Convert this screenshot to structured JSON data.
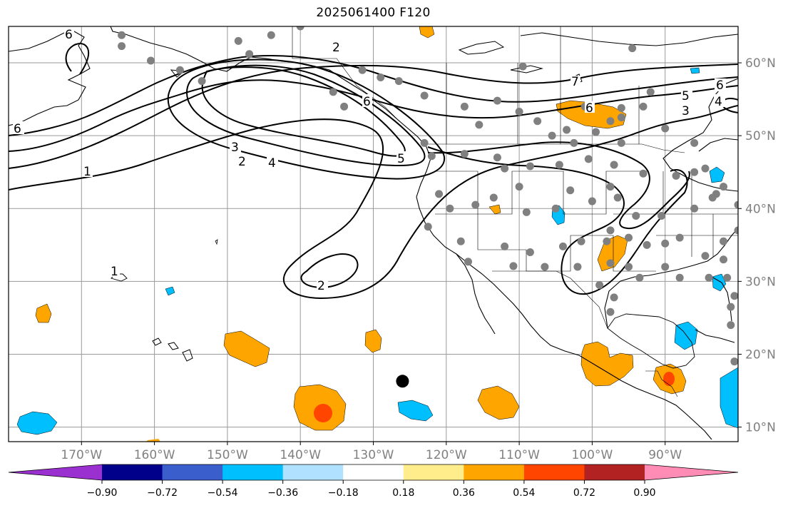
{
  "title": "2025061400 F120",
  "map": {
    "projection": "PlateCarree",
    "lon_range": [
      -180,
      -80
    ],
    "lat_range": [
      8,
      65
    ],
    "lon_ticks": [
      -170,
      -160,
      -150,
      -140,
      -130,
      -120,
      -110,
      -100,
      -90
    ],
    "lon_tick_labels": [
      "170°W",
      "160°W",
      "150°W",
      "140°W",
      "130°W",
      "120°W",
      "110°W",
      "100°W",
      "90°W"
    ],
    "lat_ticks": [
      10,
      20,
      30,
      40,
      50,
      60
    ],
    "lat_tick_labels": [
      "10°N",
      "20°N",
      "30°N",
      "40°N",
      "50°N",
      "60°N"
    ],
    "grid": true,
    "coastlines": true,
    "state_borders": true
  },
  "colorbar": {
    "colors": [
      "#9b30d0",
      "#00008b",
      "#3a5fcd",
      "#00bfff",
      "#b0e2ff",
      "#ffffff",
      "#ffec8b",
      "#ffa500",
      "#ff4500",
      "#b22222",
      "#ff8cb4"
    ],
    "tick_labels": [
      "−0.90",
      "−0.72",
      "−0.54",
      "−0.36",
      "−0.18",
      "0.18",
      "0.36",
      "0.54",
      "0.72",
      "0.90"
    ],
    "extend": "both"
  },
  "contour_labels": [
    "2",
    "6",
    "6",
    "1",
    "6",
    "3",
    "4",
    "2",
    "5",
    "6",
    "5",
    "4",
    "3",
    "2",
    "1",
    "6",
    "7"
  ],
  "markers": {
    "black_dot": {
      "lon": -126,
      "lat": 16.3,
      "color": "#000000"
    },
    "station_color": "#808080",
    "stations": [
      [
        -164.5,
        62.3
      ],
      [
        -160.5,
        60.3
      ],
      [
        -148.5,
        63.0
      ],
      [
        -147.0,
        61.2
      ],
      [
        -156.5,
        59.0
      ],
      [
        -153.5,
        57.5
      ],
      [
        -164.5,
        63.8
      ],
      [
        -144.0,
        63.8
      ],
      [
        -140.0,
        65.0
      ],
      [
        -135.5,
        56.0
      ],
      [
        -134.0,
        54.0
      ],
      [
        -129.0,
        58.0
      ],
      [
        -126.5,
        57.5
      ],
      [
        -131.5,
        59.0
      ],
      [
        -123.0,
        55.5
      ],
      [
        -117.5,
        54.0
      ],
      [
        -115.5,
        51.5
      ],
      [
        -113.0,
        54.8
      ],
      [
        -110.0,
        53.3
      ],
      [
        -109.5,
        59.5
      ],
      [
        -107.5,
        52.0
      ],
      [
        -105.5,
        50.0
      ],
      [
        -103.5,
        50.8
      ],
      [
        -101.0,
        54.0
      ],
      [
        -97.5,
        52.0
      ],
      [
        -96.0,
        52.5
      ],
      [
        -96.0,
        53.8
      ],
      [
        -93.0,
        54.0
      ],
      [
        -99.5,
        50.5
      ],
      [
        -102.5,
        49.0
      ],
      [
        -96.0,
        49.0
      ],
      [
        -94.5,
        62.0
      ],
      [
        -92.0,
        56.0
      ],
      [
        -90.0,
        51.0
      ],
      [
        -87.0,
        53.5
      ],
      [
        -86.0,
        49.0
      ],
      [
        -123.0,
        49.0
      ],
      [
        -122.0,
        47.2
      ],
      [
        -117.5,
        47.5
      ],
      [
        -113.0,
        47.0
      ],
      [
        -112.0,
        45.5
      ],
      [
        -108.5,
        45.8
      ],
      [
        -104.5,
        46.0
      ],
      [
        -100.5,
        46.8
      ],
      [
        -97.0,
        46.0
      ],
      [
        -93.0,
        44.8
      ],
      [
        -88.5,
        44.5
      ],
      [
        -86.0,
        45.0
      ],
      [
        -84.5,
        45.5
      ],
      [
        -82.0,
        43.0
      ],
      [
        -83.0,
        42.0
      ],
      [
        -79.5,
        43.5
      ],
      [
        -121.0,
        42.0
      ],
      [
        -119.5,
        40.0
      ],
      [
        -116.0,
        40.5
      ],
      [
        -113.5,
        41.5
      ],
      [
        -110.0,
        43.0
      ],
      [
        -109.0,
        39.5
      ],
      [
        -105.0,
        40.0
      ],
      [
        -103.0,
        42.5
      ],
      [
        -100.0,
        41.0
      ],
      [
        -97.5,
        43.0
      ],
      [
        -96.5,
        41.5
      ],
      [
        -94.0,
        39.0
      ],
      [
        -90.5,
        39.0
      ],
      [
        -86.0,
        40.0
      ],
      [
        -83.5,
        41.5
      ],
      [
        -80.0,
        40.5
      ],
      [
        -122.5,
        37.5
      ],
      [
        -118.0,
        35.5
      ],
      [
        -112.0,
        34.8
      ],
      [
        -108.5,
        34.0
      ],
      [
        -106.5,
        32.0
      ],
      [
        -104.0,
        34.8
      ],
      [
        -101.5,
        35.5
      ],
      [
        -98.0,
        35.5
      ],
      [
        -97.5,
        37.0
      ],
      [
        -95.0,
        36.0
      ],
      [
        -92.5,
        35.0
      ],
      [
        -90.0,
        35.2
      ],
      [
        -88.0,
        36.0
      ],
      [
        -84.5,
        33.5
      ],
      [
        -82.0,
        35.5
      ],
      [
        -80.0,
        37.0
      ],
      [
        -117.0,
        32.7
      ],
      [
        -110.8,
        32.1
      ],
      [
        -102.0,
        32.0
      ],
      [
        -99.0,
        29.5
      ],
      [
        -97.5,
        32.5
      ],
      [
        -95.0,
        32.0
      ],
      [
        -93.5,
        30.5
      ],
      [
        -90.0,
        32.0
      ],
      [
        -88.0,
        30.5
      ],
      [
        -84.0,
        30.5
      ],
      [
        -82.0,
        33.0
      ],
      [
        -81.5,
        30.5
      ],
      [
        -80.5,
        28.0
      ],
      [
        -81.0,
        26.5
      ],
      [
        -97.0,
        27.8
      ],
      [
        -97.5,
        25.8
      ],
      [
        -81.0,
        24.0
      ],
      [
        -80.5,
        19.0
      ],
      [
        -79.5,
        37.0
      ]
    ]
  }
}
